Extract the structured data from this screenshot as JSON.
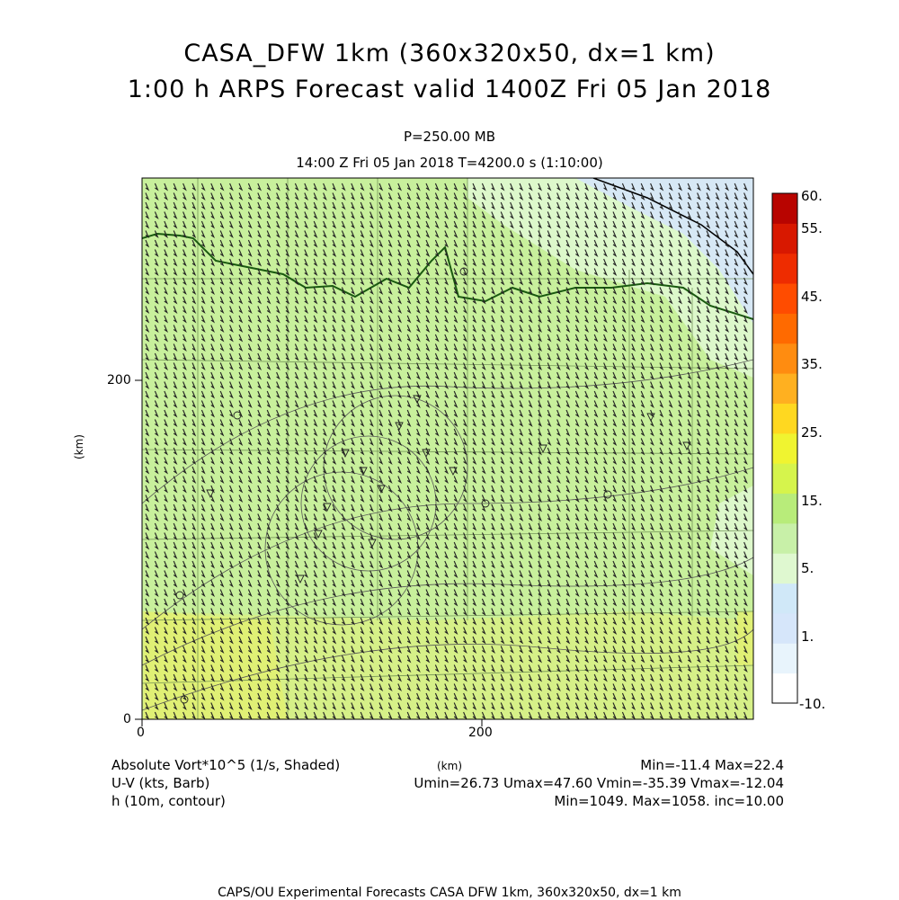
{
  "header": {
    "title_line1": "CASA_DFW 1km (360x320x50, dx=1 km)",
    "title_line2": "1:00 h ARPS Forecast valid 1400Z Fri 05 Jan 2018",
    "level": "P=250.00 MB",
    "time_line": "14:00 Z Fri 05 Jan 2018    T=4200.0 s (1:10:00)"
  },
  "axes": {
    "x_ticks": [
      "0",
      "200"
    ],
    "y_ticks": [
      "0",
      "200"
    ],
    "x_unit": "(km)",
    "y_unit": "(km)",
    "x_range_km": [
      0,
      360
    ],
    "y_range_km": [
      0,
      320
    ]
  },
  "colorbar": {
    "labels": [
      "60.",
      "55.",
      "45.",
      "35.",
      "25.",
      "15.",
      "5.",
      "1.",
      "-10."
    ],
    "colors": [
      "#ffffff",
      "#e8f4fc",
      "#d6e6fa",
      "#d0e8f8",
      "#dff8d0",
      "#c8f0a8",
      "#b8ec7a",
      "#d6f44c",
      "#f0f430",
      "#ffd820",
      "#ffb020",
      "#ff8c10",
      "#ff6a00",
      "#ff4c00",
      "#ee2c00",
      "#d81800",
      "#b80400"
    ]
  },
  "footer": {
    "left1": "Absolute Vort*10^5 (1/s, Shaded)",
    "left2": "U-V (kts, Barb)",
    "left3": "h (10m, contour)",
    "mid_unit": "(km)",
    "right1": "Min=-11.4 Max=22.4",
    "right2": "Umin=26.73 Umax=47.60 Vmin=-35.39 Vmax=-12.04",
    "right3": "Min=1049. Max=1058. inc=10.00",
    "credit": "CAPS/OU Experimental Forecasts  CASA DFW 1km, 360x320x50, dx=1 km"
  }
}
